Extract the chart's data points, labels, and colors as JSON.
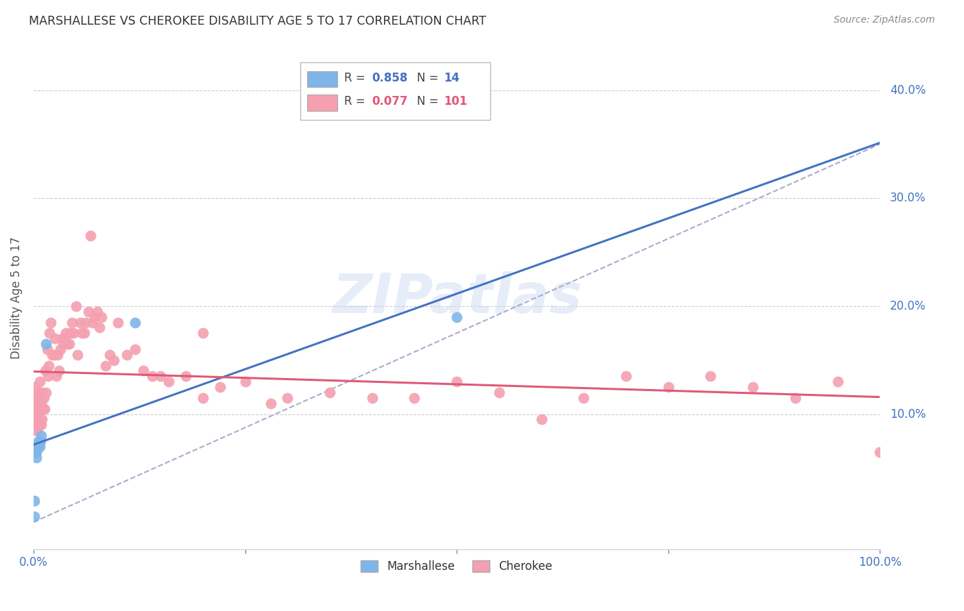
{
  "title": "MARSHALLESE VS CHEROKEE DISABILITY AGE 5 TO 17 CORRELATION CHART",
  "source": "Source: ZipAtlas.com",
  "ylabel": "Disability Age 5 to 17",
  "xlim": [
    0.0,
    1.0
  ],
  "ylim": [
    -0.025,
    0.44
  ],
  "watermark": "ZIPatlas",
  "marshallese_color": "#7EB6E8",
  "cherokee_color": "#F4A0B0",
  "marshallese_line_color": "#4472C4",
  "cherokee_line_color": "#E05878",
  "marshallese_R": 0.858,
  "marshallese_N": 14,
  "cherokee_R": 0.077,
  "cherokee_N": 101,
  "marshallese_x": [
    0.001,
    0.001,
    0.002,
    0.003,
    0.003,
    0.004,
    0.005,
    0.006,
    0.007,
    0.008,
    0.009,
    0.015,
    0.12,
    0.5
  ],
  "marshallese_y": [
    0.005,
    0.02,
    0.065,
    0.06,
    0.065,
    0.07,
    0.07,
    0.075,
    0.07,
    0.075,
    0.08,
    0.165,
    0.185,
    0.19
  ],
  "cherokee_x": [
    0.001,
    0.001,
    0.001,
    0.002,
    0.002,
    0.002,
    0.003,
    0.003,
    0.003,
    0.004,
    0.004,
    0.005,
    0.005,
    0.005,
    0.006,
    0.006,
    0.007,
    0.007,
    0.007,
    0.008,
    0.008,
    0.009,
    0.009,
    0.01,
    0.01,
    0.011,
    0.012,
    0.013,
    0.014,
    0.015,
    0.016,
    0.017,
    0.018,
    0.019,
    0.02,
    0.022,
    0.024,
    0.025,
    0.027,
    0.028,
    0.03,
    0.032,
    0.034,
    0.035,
    0.037,
    0.038,
    0.04,
    0.042,
    0.044,
    0.045,
    0.047,
    0.05,
    0.052,
    0.055,
    0.057,
    0.06,
    0.062,
    0.065,
    0.067,
    0.07,
    0.072,
    0.075,
    0.078,
    0.08,
    0.085,
    0.09,
    0.095,
    0.1,
    0.11,
    0.12,
    0.13,
    0.14,
    0.15,
    0.16,
    0.18,
    0.2,
    0.22,
    0.25,
    0.28,
    0.3,
    0.35,
    0.4,
    0.45,
    0.5,
    0.55,
    0.6,
    0.65,
    0.7,
    0.75,
    0.8,
    0.85,
    0.9,
    0.95,
    1.0,
    0.003,
    0.004,
    0.005,
    0.006,
    0.007,
    0.008,
    0.2
  ],
  "cherokee_y": [
    0.085,
    0.1,
    0.12,
    0.09,
    0.11,
    0.125,
    0.09,
    0.1,
    0.11,
    0.085,
    0.12,
    0.1,
    0.09,
    0.115,
    0.09,
    0.105,
    0.095,
    0.115,
    0.13,
    0.105,
    0.12,
    0.09,
    0.11,
    0.095,
    0.12,
    0.105,
    0.115,
    0.105,
    0.14,
    0.12,
    0.16,
    0.135,
    0.145,
    0.175,
    0.185,
    0.155,
    0.155,
    0.17,
    0.135,
    0.155,
    0.14,
    0.16,
    0.17,
    0.165,
    0.17,
    0.175,
    0.165,
    0.165,
    0.175,
    0.185,
    0.175,
    0.2,
    0.155,
    0.185,
    0.175,
    0.175,
    0.185,
    0.195,
    0.265,
    0.185,
    0.19,
    0.195,
    0.18,
    0.19,
    0.145,
    0.155,
    0.15,
    0.185,
    0.155,
    0.16,
    0.14,
    0.135,
    0.135,
    0.13,
    0.135,
    0.115,
    0.125,
    0.13,
    0.11,
    0.115,
    0.12,
    0.115,
    0.115,
    0.13,
    0.12,
    0.095,
    0.115,
    0.135,
    0.125,
    0.135,
    0.125,
    0.115,
    0.13,
    0.065,
    0.115,
    0.115,
    0.1,
    0.105,
    0.09,
    0.105,
    0.175
  ],
  "bg_color": "#FFFFFF",
  "grid_color": "#CCCCCC",
  "tick_color": "#4472C4",
  "title_color": "#333333",
  "source_color": "#888888",
  "diag_line_x0": 0.0,
  "diag_line_y0": 0.0,
  "diag_line_x1": 1.0,
  "diag_line_y1": 0.35
}
